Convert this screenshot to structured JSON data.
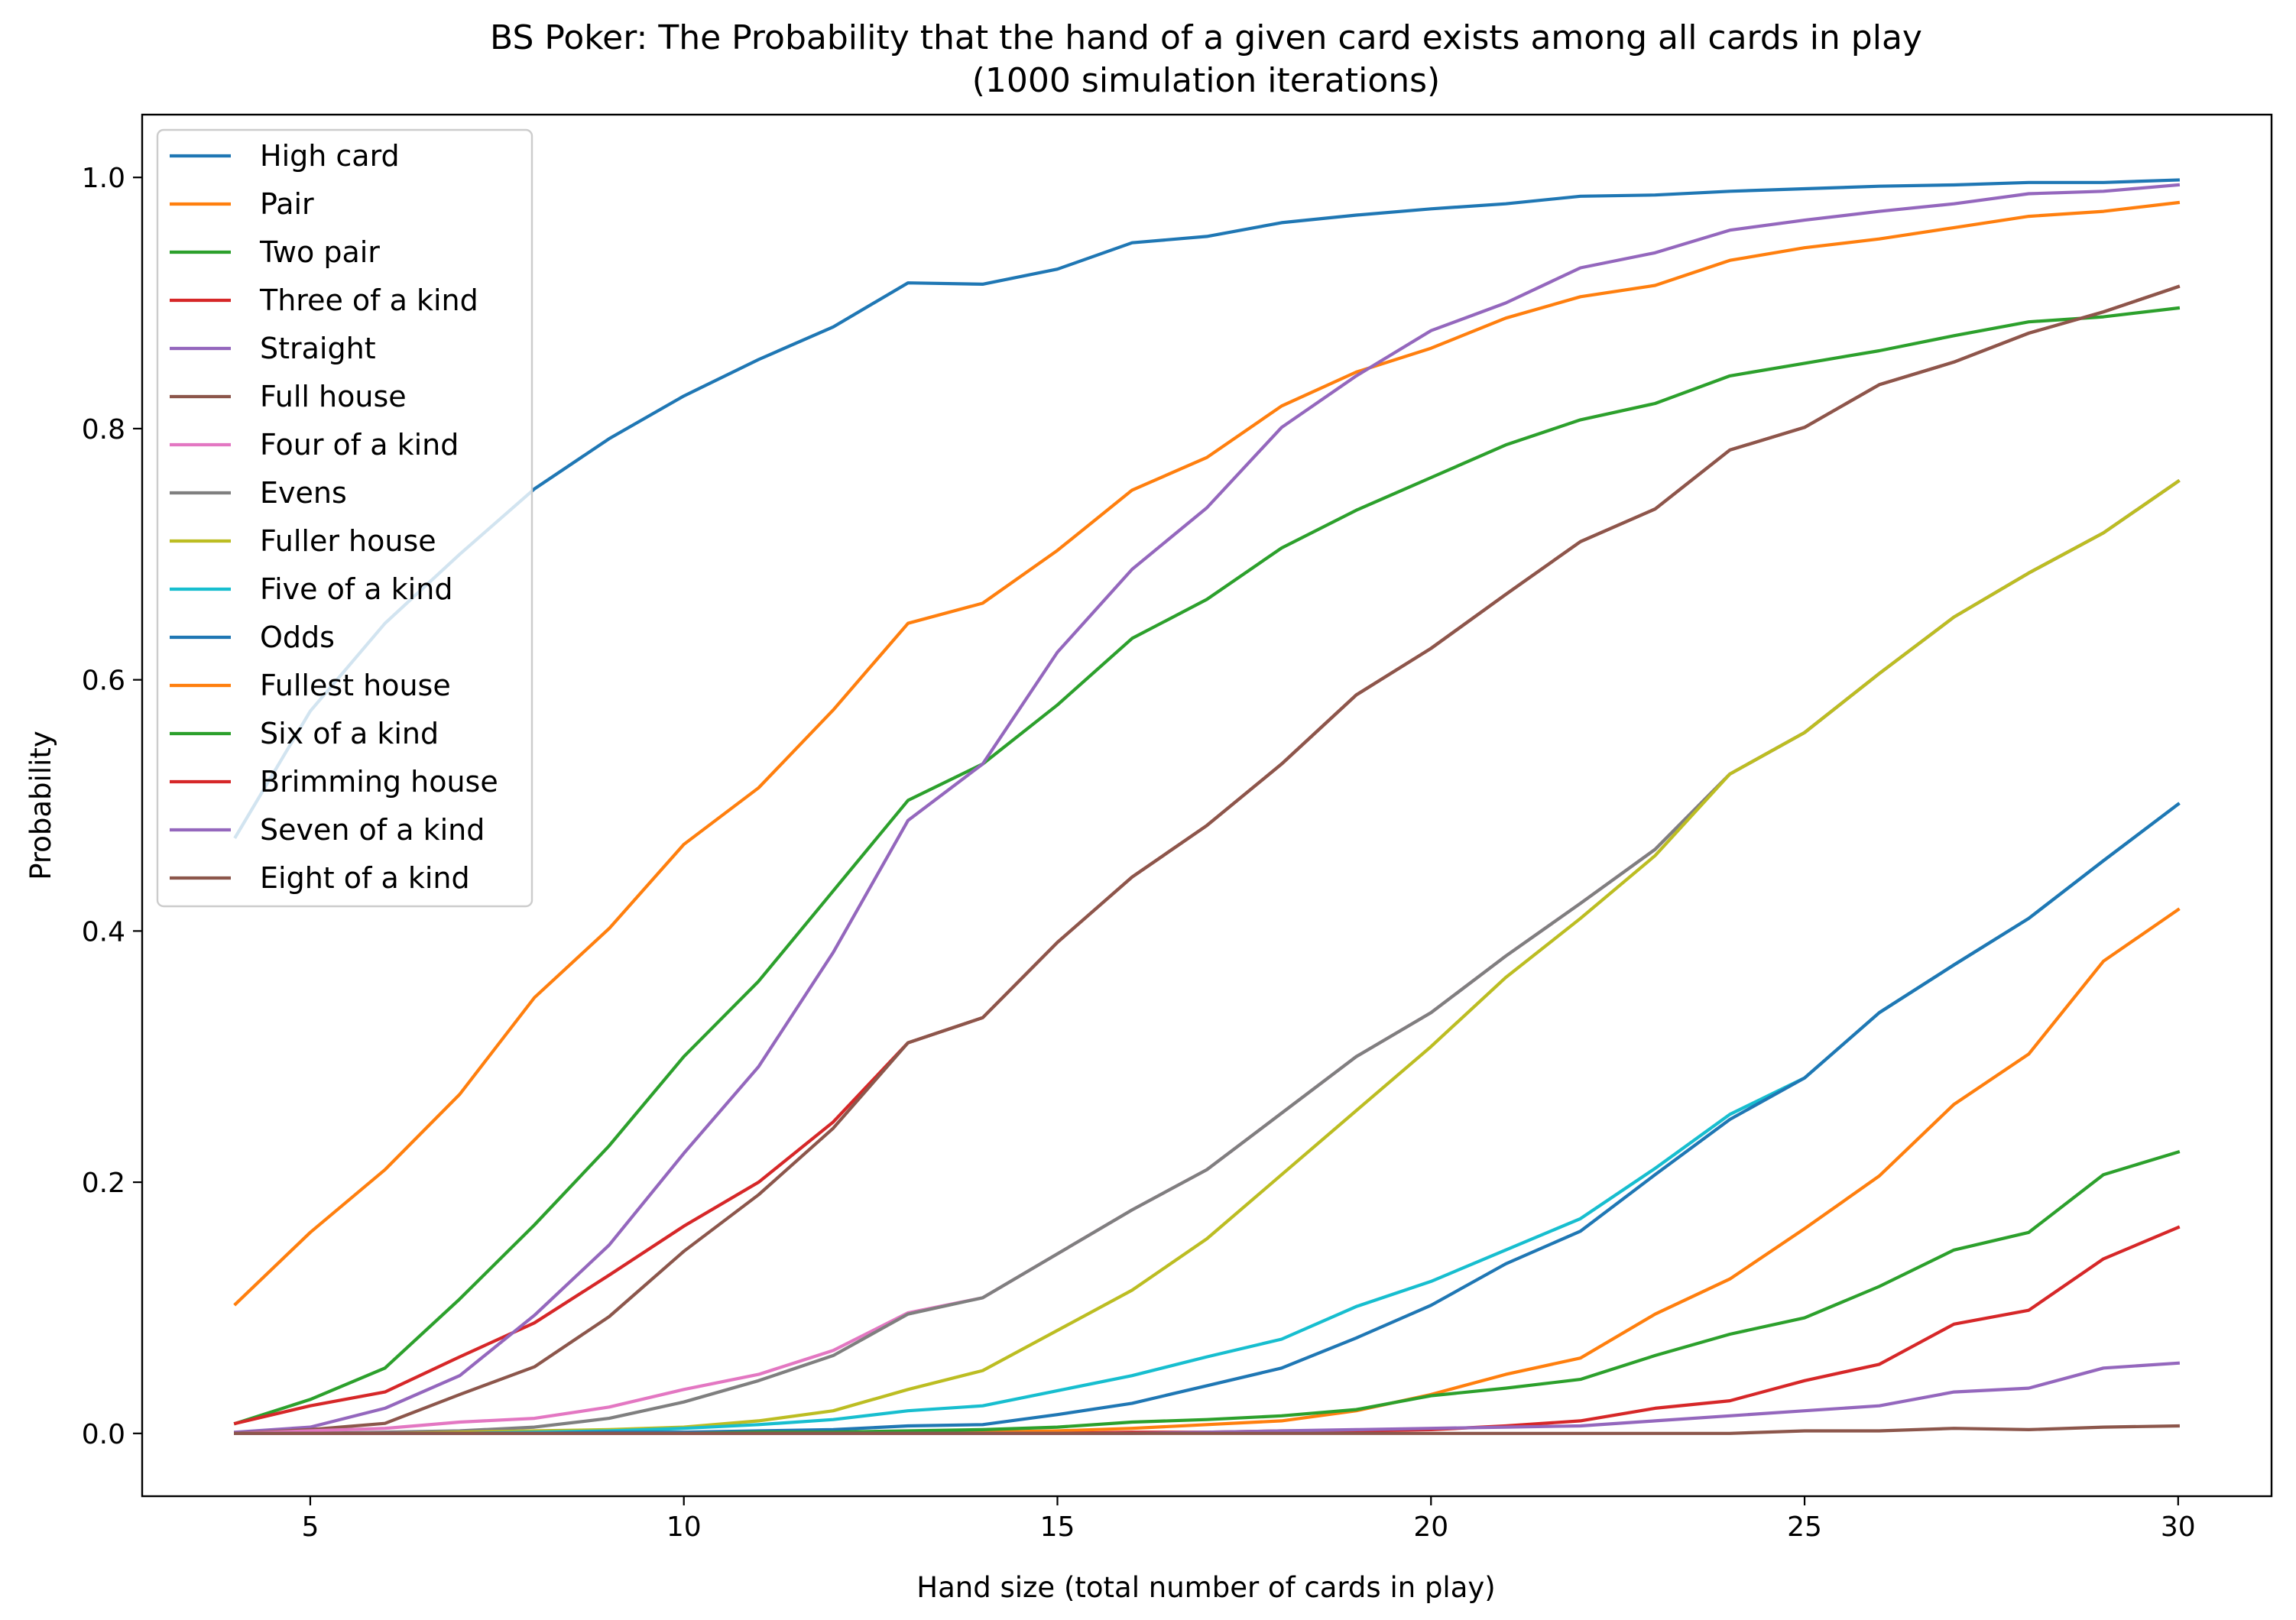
{
  "chart_data": {
    "type": "line",
    "title_lines": [
      "BS Poker: The Probability that the hand of a given card exists among all cards in play",
      "(1000 simulation iterations)"
    ],
    "xlabel": "Hand size (total number of cards in play)",
    "ylabel": "Probability",
    "xlim": [
      2.75,
      31.25
    ],
    "ylim": [
      -0.05,
      1.05
    ],
    "xticks": [
      5,
      10,
      15,
      20,
      25,
      30
    ],
    "yticks": [
      0.0,
      0.2,
      0.4,
      0.6,
      0.8,
      1.0
    ],
    "xtick_labels": [
      "5",
      "10",
      "15",
      "20",
      "25",
      "30"
    ],
    "ytick_labels": [
      "0.0",
      "0.2",
      "0.4",
      "0.6",
      "0.8",
      "1.0"
    ],
    "grid": false,
    "legend_position": "top-left",
    "x": [
      4,
      5,
      6,
      7,
      8,
      9,
      10,
      11,
      12,
      13,
      14,
      15,
      16,
      17,
      18,
      19,
      20,
      21,
      22,
      23,
      24,
      25,
      26,
      27,
      28,
      29,
      30
    ],
    "series": [
      {
        "name": "High card",
        "color": "#1f77b4",
        "values": [
          0.475,
          0.575,
          0.645,
          0.7,
          0.752,
          0.792,
          0.826,
          0.855,
          0.881,
          0.916,
          0.915,
          0.927,
          0.948,
          0.953,
          0.964,
          0.97,
          0.975,
          0.979,
          0.985,
          0.986,
          0.989,
          0.991,
          0.993,
          0.994,
          0.996,
          0.996,
          0.998
        ]
      },
      {
        "name": "Pair",
        "color": "#ff7f0e",
        "values": [
          0.103,
          0.16,
          0.21,
          0.27,
          0.347,
          0.402,
          0.469,
          0.514,
          0.576,
          0.645,
          0.661,
          0.703,
          0.751,
          0.777,
          0.818,
          0.845,
          0.864,
          0.888,
          0.905,
          0.914,
          0.934,
          0.944,
          0.951,
          0.96,
          0.969,
          0.973,
          0.98
        ]
      },
      {
        "name": "Two pair",
        "color": "#2ca02c",
        "values": [
          0.008,
          0.027,
          0.052,
          0.107,
          0.166,
          0.229,
          0.3,
          0.36,
          0.432,
          0.504,
          0.533,
          0.58,
          0.633,
          0.664,
          0.705,
          0.735,
          0.761,
          0.787,
          0.807,
          0.82,
          0.842,
          0.852,
          0.862,
          0.874,
          0.885,
          0.889,
          0.896
        ]
      },
      {
        "name": "Three of a kind",
        "color": "#d62728",
        "values": [
          0.008,
          0.022,
          0.033,
          0.061,
          0.088,
          0.126,
          0.165,
          0.2,
          0.248,
          0.311,
          0.331,
          0.391,
          0.443,
          0.484,
          0.533,
          0.588,
          0.625,
          0.668,
          0.71,
          0.736,
          0.783,
          0.801,
          0.835,
          0.853,
          0.876,
          0.893,
          0.913
        ]
      },
      {
        "name": "Straight",
        "color": "#9467bd",
        "values": [
          0.001,
          0.005,
          0.02,
          0.046,
          0.094,
          0.15,
          0.223,
          0.292,
          0.383,
          0.488,
          0.533,
          0.622,
          0.688,
          0.737,
          0.801,
          0.842,
          0.878,
          0.9,
          0.928,
          0.94,
          0.958,
          0.966,
          0.973,
          0.979,
          0.987,
          0.989,
          0.994
        ]
      },
      {
        "name": "Full house",
        "color": "#8c564b",
        "values": [
          0.0,
          0.003,
          0.008,
          0.031,
          0.053,
          0.093,
          0.145,
          0.19,
          0.243,
          0.311,
          0.331,
          0.391,
          0.443,
          0.484,
          0.533,
          0.588,
          0.625,
          0.668,
          0.71,
          0.736,
          0.783,
          0.801,
          0.835,
          0.853,
          0.876,
          0.893,
          0.913
        ]
      },
      {
        "name": "Four of a kind",
        "color": "#e377c2",
        "values": [
          0.0,
          0.002,
          0.004,
          0.009,
          0.012,
          0.021,
          0.035,
          0.047,
          0.066,
          0.096,
          0.108,
          0.143,
          0.178,
          0.21,
          0.255,
          0.3,
          0.335,
          0.38,
          0.422,
          0.465,
          0.525,
          0.558,
          0.605,
          0.65,
          0.685,
          0.717,
          0.758
        ]
      },
      {
        "name": "Evens",
        "color": "#7f7f7f",
        "values": [
          0.0,
          0.0,
          0.001,
          0.002,
          0.005,
          0.012,
          0.025,
          0.042,
          0.062,
          0.095,
          0.108,
          0.143,
          0.178,
          0.21,
          0.255,
          0.3,
          0.335,
          0.38,
          0.422,
          0.465,
          0.525,
          0.558,
          0.605,
          0.65,
          0.685,
          0.717,
          0.758
        ]
      },
      {
        "name": "Fuller house",
        "color": "#bcbd22",
        "values": [
          0.0,
          0.0,
          0.0,
          0.001,
          0.002,
          0.003,
          0.005,
          0.01,
          0.018,
          0.035,
          0.05,
          0.082,
          0.114,
          0.155,
          0.206,
          0.257,
          0.308,
          0.363,
          0.41,
          0.46,
          0.525,
          0.558,
          0.605,
          0.65,
          0.685,
          0.717,
          0.758
        ]
      },
      {
        "name": "Five of a kind",
        "color": "#17becf",
        "values": [
          0.0,
          0.0,
          0.0,
          0.0,
          0.001,
          0.002,
          0.004,
          0.007,
          0.011,
          0.018,
          0.022,
          0.034,
          0.046,
          0.061,
          0.075,
          0.101,
          0.121,
          0.146,
          0.171,
          0.211,
          0.254,
          0.283,
          0.335,
          0.373,
          0.41,
          0.456,
          0.501
        ]
      },
      {
        "name": "Odds",
        "color": "#1f77b4",
        "values": [
          0.0,
          0.0,
          0.0,
          0.0,
          0.0,
          0.001,
          0.001,
          0.002,
          0.003,
          0.006,
          0.007,
          0.015,
          0.024,
          0.038,
          0.052,
          0.076,
          0.102,
          0.135,
          0.161,
          0.206,
          0.25,
          0.283,
          0.335,
          0.373,
          0.41,
          0.456,
          0.501
        ]
      },
      {
        "name": "Fullest house",
        "color": "#ff7f0e",
        "values": [
          0.0,
          0.0,
          0.0,
          0.0,
          0.0,
          0.0,
          0.0,
          0.0,
          0.0,
          0.001,
          0.001,
          0.002,
          0.004,
          0.007,
          0.01,
          0.018,
          0.031,
          0.047,
          0.06,
          0.095,
          0.123,
          0.163,
          0.205,
          0.262,
          0.302,
          0.376,
          0.417
        ]
      },
      {
        "name": "Six of a kind",
        "color": "#2ca02c",
        "values": [
          0.0,
          0.0,
          0.0,
          0.0,
          0.0,
          0.0,
          0.0,
          0.001,
          0.001,
          0.002,
          0.003,
          0.005,
          0.009,
          0.011,
          0.014,
          0.019,
          0.03,
          0.036,
          0.043,
          0.062,
          0.079,
          0.092,
          0.117,
          0.146,
          0.16,
          0.206,
          0.224
        ]
      },
      {
        "name": "Brimming house",
        "color": "#d62728",
        "values": [
          0.0,
          0.0,
          0.0,
          0.0,
          0.0,
          0.0,
          0.0,
          0.0,
          0.0,
          0.0,
          0.0,
          0.0,
          0.001,
          0.001,
          0.002,
          0.002,
          0.003,
          0.006,
          0.01,
          0.02,
          0.026,
          0.042,
          0.055,
          0.087,
          0.098,
          0.139,
          0.164
        ]
      },
      {
        "name": "Seven of a kind",
        "color": "#9467bd",
        "values": [
          0.0,
          0.0,
          0.0,
          0.0,
          0.0,
          0.0,
          0.0,
          0.0,
          0.0,
          0.0,
          0.0,
          0.0,
          0.0,
          0.001,
          0.002,
          0.003,
          0.004,
          0.005,
          0.006,
          0.01,
          0.014,
          0.018,
          0.022,
          0.033,
          0.036,
          0.052,
          0.056
        ]
      },
      {
        "name": "Eight of a kind",
        "color": "#8c564b",
        "values": [
          0.0,
          0.0,
          0.0,
          0.0,
          0.0,
          0.0,
          0.0,
          0.0,
          0.0,
          0.0,
          0.0,
          0.0,
          0.0,
          0.0,
          0.0,
          0.0,
          0.0,
          0.0,
          0.0,
          0.0,
          0.0,
          0.002,
          0.002,
          0.004,
          0.003,
          0.005,
          0.006
        ]
      }
    ]
  }
}
